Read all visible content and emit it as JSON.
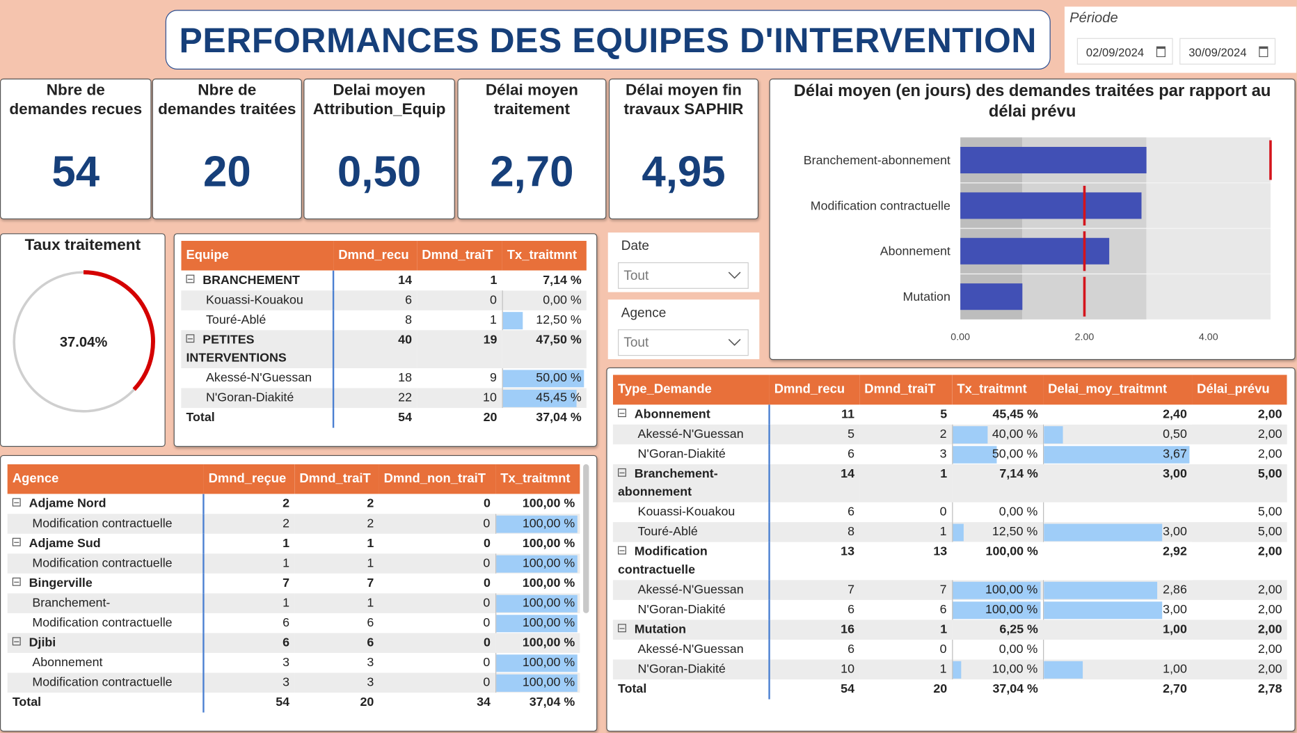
{
  "header": {
    "title": "PERFORMANCES DES EQUIPES D'INTERVENTION"
  },
  "period": {
    "label": "Période",
    "start": "02/09/2024",
    "end": "30/09/2024"
  },
  "kpis": [
    {
      "label": [
        "Nbre de",
        "demandes recues"
      ],
      "value": "54"
    },
    {
      "label": [
        "Nbre de",
        "demandes traitées"
      ],
      "value": "20"
    },
    {
      "label": [
        "Delai moyen",
        "Attribution_Equip"
      ],
      "value": "0,50"
    },
    {
      "label": [
        "Délai moyen",
        "traitement"
      ],
      "value": "2,70"
    },
    {
      "label": [
        "Délai moyen fin",
        "travaux SAPHIR"
      ],
      "value": "4,95"
    }
  ],
  "slicers": [
    {
      "label": "Date",
      "value": "Tout"
    },
    {
      "label": "Agence",
      "value": "Tout"
    }
  ],
  "chart_data": [
    {
      "type": "gauge",
      "title": "Taux traitement",
      "values": [
        37.04
      ],
      "value_labels": [
        "37.04%"
      ],
      "ylim": [
        0,
        100
      ],
      "color": "#d40000",
      "track_color": "#cfcfcf"
    },
    {
      "type": "bullet",
      "title": "Délai moyen (en jours) des demandes traitées par rapport au délai prévu",
      "categories": [
        "Branchement-abonnement",
        "Modification contractuelle",
        "Abonnement",
        "Mutation"
      ],
      "values": [
        3.0,
        2.92,
        2.4,
        1.0
      ],
      "color": "#4150b5",
      "target_values": [
        5.0,
        2.0,
        2.0,
        2.0
      ],
      "target_color": "#d4141c",
      "ranges": [
        1,
        3,
        5
      ],
      "range_colors": [
        "#bdbdbd",
        "#d3d3d3",
        "#e8e8e8"
      ],
      "xlim": [
        0,
        5
      ],
      "xticks": [
        {
          "value": 0,
          "label": "0.00"
        },
        {
          "value": 2,
          "label": "2.00"
        },
        {
          "value": 4,
          "label": "4.00"
        }
      ]
    }
  ],
  "tables": [
    {
      "columns": [
        "Equipe",
        "Dmnd_recu",
        "Dmnd_traiT",
        "Tx_traitmnt"
      ],
      "groups": [
        {
          "cells": [
            "BRANCHEMENT",
            14,
            1,
            "7,14 %"
          ],
          "children": [
            [
              "Kouassi-Kouakou",
              6,
              0,
              {
                "value": 0,
                "label": "0,00 %"
              }
            ],
            [
              "Touré-Ablé",
              8,
              1,
              {
                "value": 12.5,
                "label": "12,50 %"
              }
            ]
          ]
        },
        {
          "cells": [
            "PETITES INTERVENTIONS",
            40,
            19,
            "47,50 %"
          ],
          "children": [
            [
              "Akessé-N'Guessan",
              18,
              9,
              {
                "value": 50,
                "label": "50,00 %"
              }
            ],
            [
              "N'Goran-Diakité",
              22,
              10,
              {
                "value": 45.45,
                "label": "45,45 %"
              }
            ]
          ]
        }
      ],
      "total": [
        "Total",
        54,
        20,
        "37,04 %"
      ]
    },
    {
      "columns": [
        "Agence",
        "Dmnd_reçue",
        "Dmnd_traiT",
        "Dmnd_non_traiT",
        "Tx_traitmnt"
      ],
      "groups": [
        {
          "cells": [
            "Adjame Nord",
            2,
            2,
            0,
            "100,00 %"
          ],
          "children": [
            [
              "Modification contractuelle",
              2,
              2,
              0,
              {
                "value": 100,
                "label": "100,00 %"
              }
            ]
          ]
        },
        {
          "cells": [
            "Adjame Sud",
            1,
            1,
            0,
            "100,00 %"
          ],
          "children": [
            [
              "Modification contractuelle",
              1,
              1,
              0,
              {
                "value": 100,
                "label": "100,00 %"
              }
            ]
          ]
        },
        {
          "cells": [
            "Bingerville",
            7,
            7,
            0,
            "100,00 %"
          ],
          "children": [
            [
              "Branchement-",
              1,
              1,
              0,
              {
                "value": 100,
                "label": "100,00 %"
              }
            ],
            [
              "Modification contractuelle",
              6,
              6,
              0,
              {
                "value": 100,
                "label": "100,00 %"
              }
            ]
          ]
        },
        {
          "cells": [
            "Djibi",
            6,
            6,
            0,
            "100,00 %"
          ],
          "children": [
            [
              "Abonnement",
              3,
              3,
              0,
              {
                "value": 100,
                "label": "100,00 %"
              }
            ],
            [
              "Modification contractuelle",
              3,
              3,
              0,
              {
                "value": 100,
                "label": "100,00 %"
              }
            ]
          ]
        }
      ],
      "total": [
        "Total",
        54,
        20,
        34,
        "37,04 %"
      ]
    },
    {
      "columns": [
        "Type_Demande",
        "Dmnd_recu",
        "Dmnd_traiT",
        "Tx_traitmnt",
        "Delai_moy_traitmnt",
        "Délai_prévu"
      ],
      "groups": [
        {
          "cells": [
            "Abonnement",
            11,
            5,
            "45,45 %",
            "2,40",
            "2,00"
          ],
          "children": [
            [
              "Akessé-N'Guessan",
              5,
              2,
              {
                "value": 40,
                "label": "40,00 %"
              },
              {
                "value": 0.5,
                "label": "0,50"
              },
              "2,00"
            ],
            [
              "N'Goran-Diakité",
              6,
              3,
              {
                "value": 50,
                "label": "50,00 %"
              },
              {
                "value": 3.67,
                "label": "3,67"
              },
              "2,00"
            ]
          ]
        },
        {
          "cells": [
            "Branchement-abonnement",
            14,
            1,
            "7,14 %",
            "3,00",
            "5,00"
          ],
          "children": [
            [
              "Kouassi-Kouakou",
              6,
              0,
              {
                "value": 0,
                "label": "0,00 %"
              },
              null,
              "5,00"
            ],
            [
              "Touré-Ablé",
              8,
              1,
              {
                "value": 12.5,
                "label": "12,50 %"
              },
              {
                "value": 3,
                "label": "3,00"
              },
              "5,00"
            ]
          ]
        },
        {
          "cells": [
            "Modification contractuelle",
            13,
            13,
            "100,00 %",
            "2,92",
            "2,00"
          ],
          "children": [
            [
              "Akessé-N'Guessan",
              7,
              7,
              {
                "value": 100,
                "label": "100,00 %"
              },
              {
                "value": 2.86,
                "label": "2,86"
              },
              "2,00"
            ],
            [
              "N'Goran-Diakité",
              6,
              6,
              {
                "value": 100,
                "label": "100,00 %"
              },
              {
                "value": 3,
                "label": "3,00"
              },
              "2,00"
            ]
          ]
        },
        {
          "cells": [
            "Mutation",
            16,
            1,
            "6,25 %",
            "1,00",
            "2,00"
          ],
          "children": [
            [
              "Akessé-N'Guessan",
              6,
              0,
              {
                "value": 0,
                "label": "0,00 %"
              },
              null,
              "2,00"
            ],
            [
              "N'Goran-Diakité",
              10,
              1,
              {
                "value": 10,
                "label": "10,00 %"
              },
              {
                "value": 1,
                "label": "1,00"
              },
              "2,00"
            ]
          ]
        }
      ],
      "total": [
        "Total",
        54,
        20,
        "37,04 %",
        "2,70",
        "2,78"
      ]
    }
  ]
}
